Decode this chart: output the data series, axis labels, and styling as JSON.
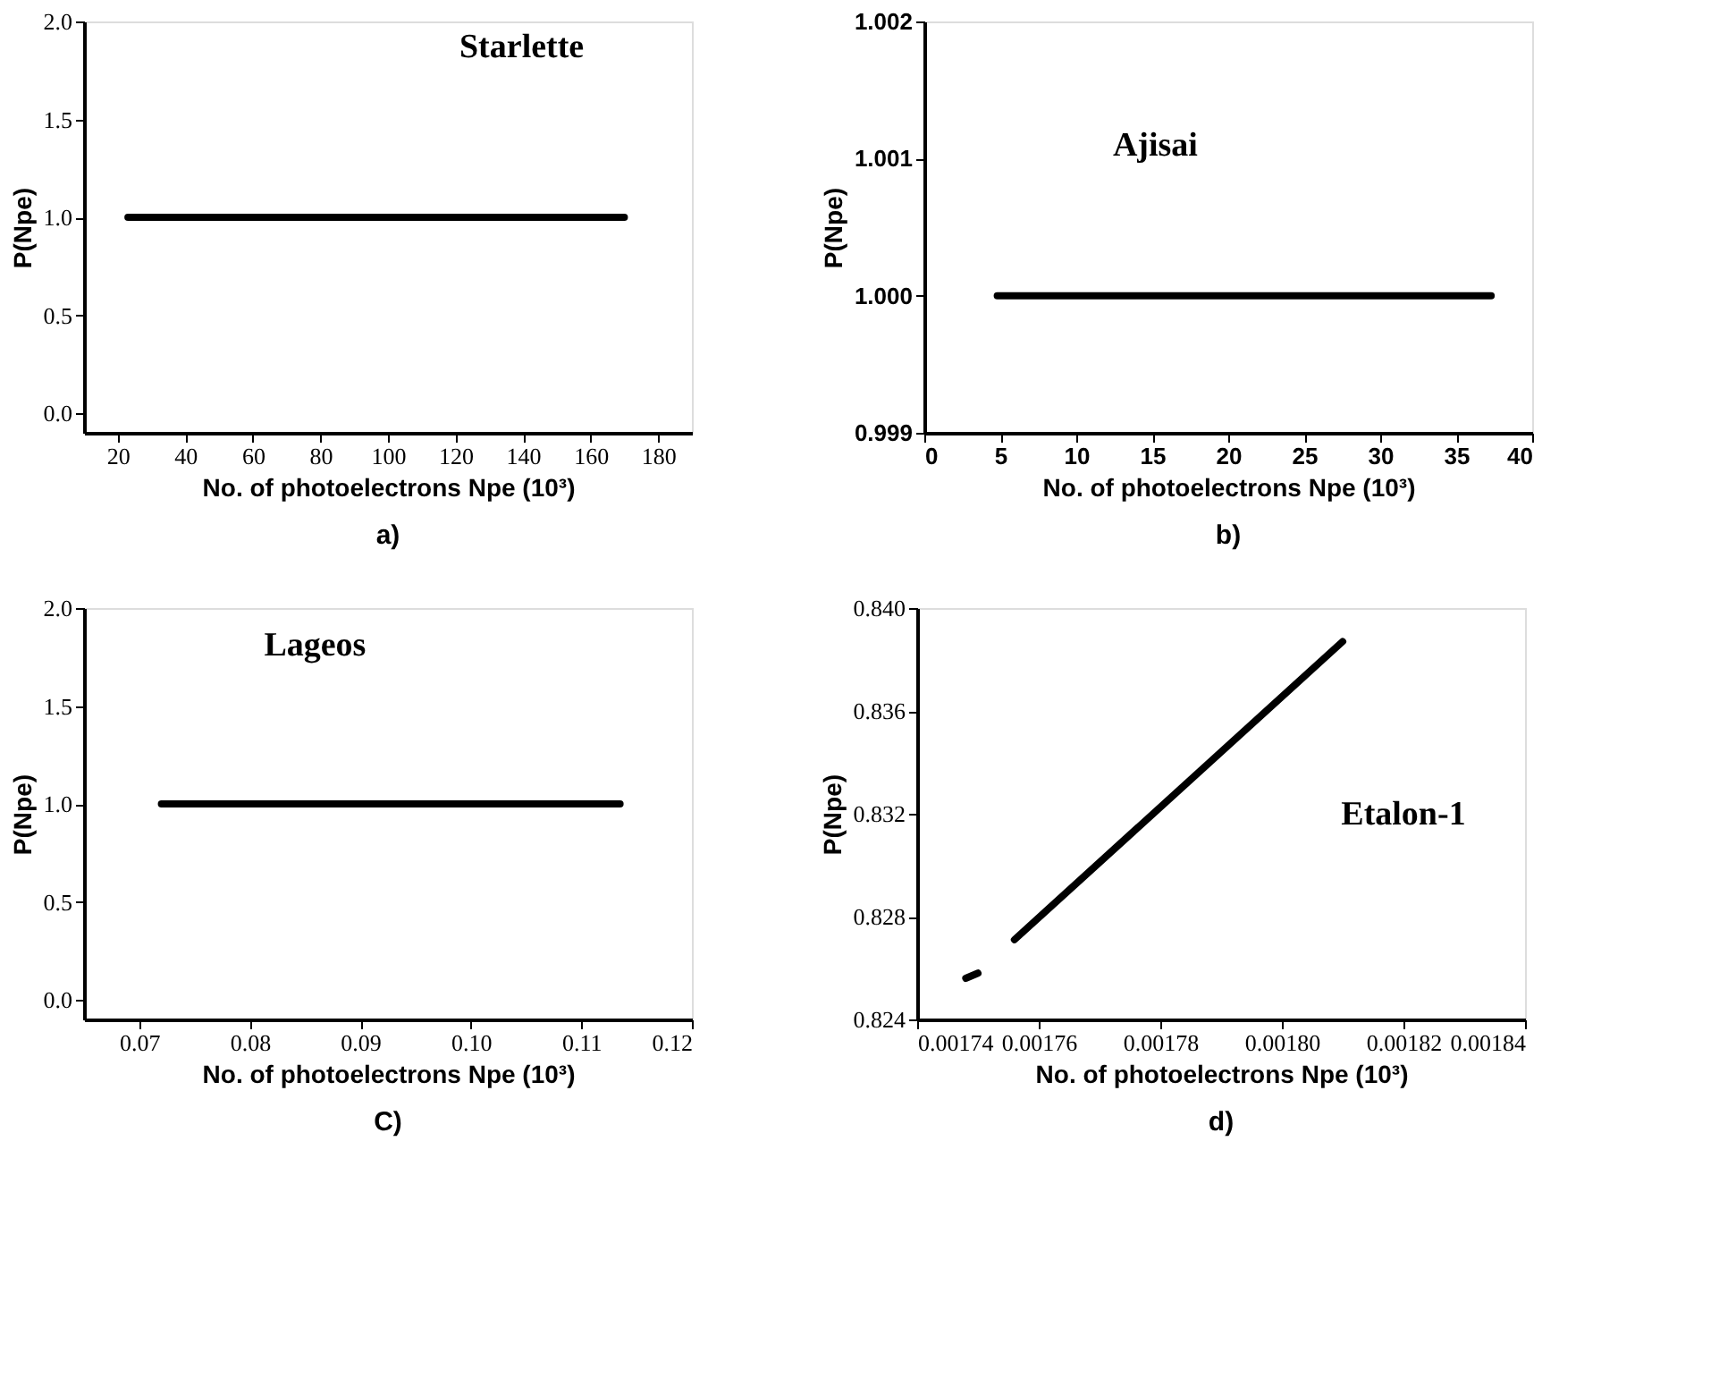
{
  "chart_data": [
    {
      "type": "line",
      "title": "Starlette",
      "xlabel": "No. of photoelectrons Npe (10³)",
      "ylabel": "P(Npe)",
      "annotations": [
        "a)"
      ],
      "series": [
        {
          "color": "#000000",
          "x": [
            23,
            170
          ],
          "values": [
            1.0,
            1.0
          ]
        }
      ],
      "xlim": [
        10,
        190
      ],
      "xticks": [
        20,
        40,
        60,
        80,
        100,
        120,
        140,
        160,
        180
      ],
      "ylim": [
        -0.1,
        2.0
      ],
      "yticks": [
        {
          "value": 0,
          "label": "0.0"
        },
        0.5,
        {
          "value": 1,
          "label": "1.0"
        },
        1.5,
        {
          "value": 2,
          "label": "2.0"
        }
      ],
      "grid": false,
      "line_style": "solid",
      "marker": "none"
    },
    {
      "type": "line",
      "title": "Ajisai",
      "xlabel": "No. of photoelectrons Npe (10³)",
      "ylabel": "P(Npe)",
      "annotations": [
        "b)"
      ],
      "series": [
        {
          "color": "#000000",
          "x": [
            4.8,
            37.3
          ],
          "values": [
            1.0,
            1.0
          ]
        }
      ],
      "xlim": [
        0,
        40
      ],
      "xticks": [
        0,
        5,
        10,
        15,
        20,
        25,
        30,
        35,
        40
      ],
      "ylim": [
        0.999,
        1.002
      ],
      "yticks": [
        0.999,
        {
          "value": 1,
          "label": "1.000"
        },
        1.001,
        1.002
      ],
      "grid": false,
      "line_style": "solid",
      "marker": "none"
    },
    {
      "type": "line",
      "title": "Lageos",
      "xlabel": "No. of photoelectrons Npe (10³)",
      "ylabel": "P(Npe)",
      "annotations": [
        "C)"
      ],
      "series": [
        {
          "color": "#000000",
          "x": [
            0.072,
            0.1135
          ],
          "values": [
            1.0,
            1.0
          ]
        }
      ],
      "xlim": [
        0.065,
        0.12
      ],
      "xticks": [
        0.07,
        0.08,
        0.09,
        {
          "value": 0.1,
          "label": "0.10"
        },
        0.11,
        0.12
      ],
      "ylim": [
        -0.1,
        2.0
      ],
      "yticks": [
        {
          "value": 0,
          "label": "0.0"
        },
        0.5,
        {
          "value": 1,
          "label": "1.0"
        },
        1.5,
        {
          "value": 2,
          "label": "2.0"
        }
      ],
      "grid": false,
      "line_style": "solid",
      "marker": "none"
    },
    {
      "type": "line",
      "title": "Etalon-1",
      "xlabel": "No. of photoelectrons Npe (10³)",
      "ylabel": "P(Npe)",
      "annotations": [
        "d)"
      ],
      "series": [
        {
          "color": "#000000",
          "x": [
            0.001748,
            0.00175,
            0.001753,
            0.001756,
            0.00181
          ],
          "values": [
            0.8256,
            0.8258,
            null,
            0.8271,
            0.8387
          ]
        }
      ],
      "xlim": [
        0.00174,
        0.00184
      ],
      "xticks": [
        0.00174,
        0.00176,
        0.00178,
        {
          "value": 0.0018,
          "label": "0.00180"
        },
        0.00182,
        0.00184
      ],
      "ylim": [
        0.824,
        0.84
      ],
      "yticks": [
        0.824,
        0.828,
        0.832,
        0.836,
        {
          "value": 0.84,
          "label": "0.840"
        }
      ],
      "grid": false,
      "line_style": "solid",
      "marker": "none"
    }
  ]
}
